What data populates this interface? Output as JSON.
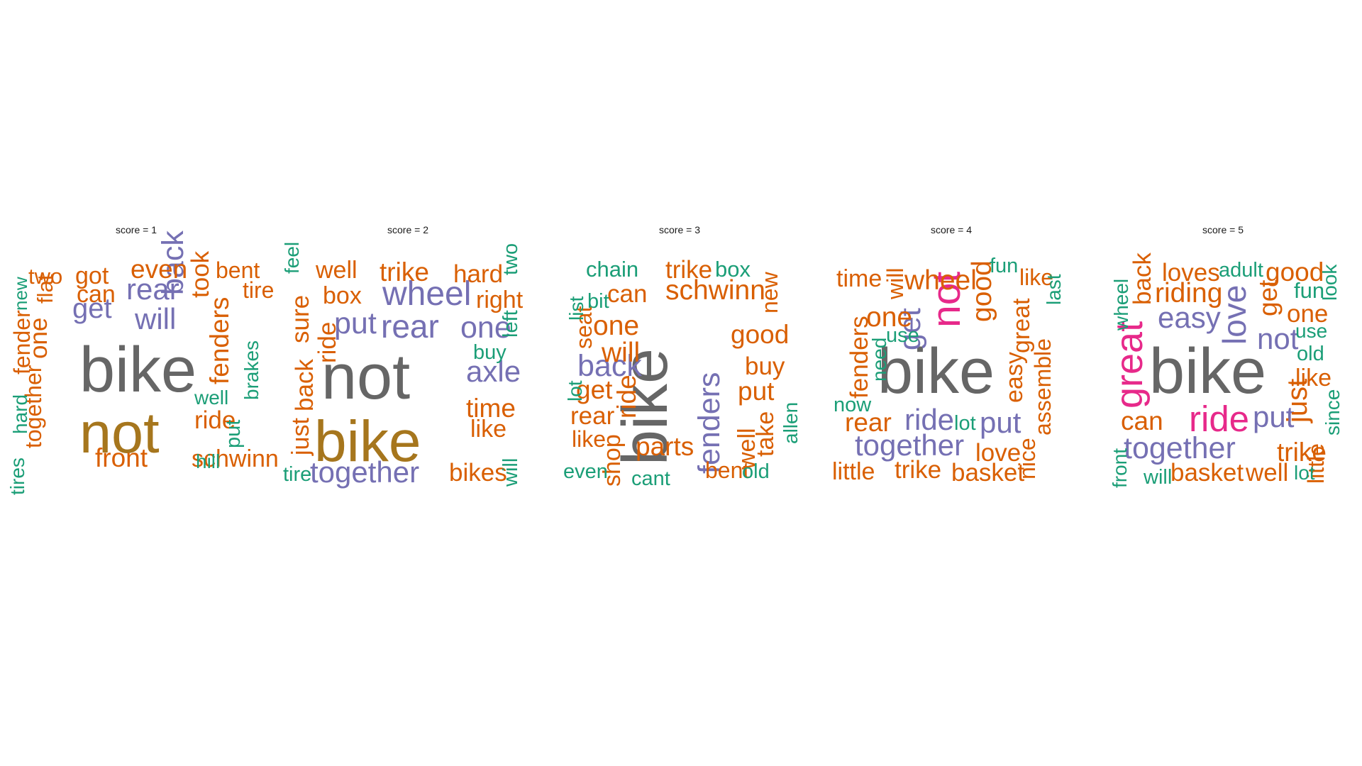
{
  "chart_data": [
    {
      "type": "wordcloud",
      "title": "score = 1",
      "words": [
        {
          "text": "bike",
          "weight": 100,
          "color": "#666666"
        },
        {
          "text": "not",
          "weight": 88,
          "color": "#A6761D"
        },
        {
          "text": "rear",
          "weight": 38,
          "color": "#7570B3"
        },
        {
          "text": "get",
          "weight": 36,
          "color": "#7570B3"
        },
        {
          "text": "will",
          "weight": 38,
          "color": "#7570B3"
        },
        {
          "text": "back",
          "weight": 40,
          "color": "#7570B3"
        },
        {
          "text": "even",
          "weight": 32,
          "color": "#D95F02"
        },
        {
          "text": "front",
          "weight": 32,
          "color": "#D95F02"
        },
        {
          "text": "fenders",
          "weight": 32,
          "color": "#D95F02"
        },
        {
          "text": "took",
          "weight": 30,
          "color": "#D95F02"
        },
        {
          "text": "one",
          "weight": 30,
          "color": "#D95F02"
        },
        {
          "text": "got",
          "weight": 28,
          "color": "#D95F02"
        },
        {
          "text": "can",
          "weight": 28,
          "color": "#D95F02"
        },
        {
          "text": "ride",
          "weight": 30,
          "color": "#D95F02"
        },
        {
          "text": "bent",
          "weight": 26,
          "color": "#D95F02"
        },
        {
          "text": "tire",
          "weight": 26,
          "color": "#D95F02"
        },
        {
          "text": "schwinn",
          "weight": 28,
          "color": "#D95F02"
        },
        {
          "text": "fender",
          "weight": 26,
          "color": "#D95F02"
        },
        {
          "text": "together",
          "weight": 26,
          "color": "#D95F02"
        },
        {
          "text": "two",
          "weight": 24,
          "color": "#D95F02"
        },
        {
          "text": "flat",
          "weight": 24,
          "color": "#D95F02"
        },
        {
          "text": "put",
          "weight": 22,
          "color": "#1B9E77"
        },
        {
          "text": "well",
          "weight": 20,
          "color": "#1B9E77"
        },
        {
          "text": "hill",
          "weight": 20,
          "color": "#1B9E77"
        },
        {
          "text": "brakes",
          "weight": 20,
          "color": "#1B9E77"
        },
        {
          "text": "hard",
          "weight": 20,
          "color": "#1B9E77"
        },
        {
          "text": "tires",
          "weight": 20,
          "color": "#1B9E77"
        },
        {
          "text": "new",
          "weight": 18,
          "color": "#1B9E77"
        }
      ]
    },
    {
      "type": "wordcloud",
      "title": "score = 2",
      "words": [
        {
          "text": "not",
          "weight": 100,
          "color": "#666666"
        },
        {
          "text": "bike",
          "weight": 90,
          "color": "#A6761D"
        },
        {
          "text": "wheel",
          "weight": 46,
          "color": "#7570B3"
        },
        {
          "text": "rear",
          "weight": 44,
          "color": "#7570B3"
        },
        {
          "text": "one",
          "weight": 40,
          "color": "#7570B3"
        },
        {
          "text": "put",
          "weight": 40,
          "color": "#7570B3"
        },
        {
          "text": "axle",
          "weight": 38,
          "color": "#7570B3"
        },
        {
          "text": "together",
          "weight": 38,
          "color": "#7570B3"
        },
        {
          "text": "trike",
          "weight": 32,
          "color": "#D95F02"
        },
        {
          "text": "hard",
          "weight": 30,
          "color": "#D95F02"
        },
        {
          "text": "right",
          "weight": 28,
          "color": "#D95F02"
        },
        {
          "text": "well",
          "weight": 28,
          "color": "#D95F02"
        },
        {
          "text": "box",
          "weight": 28,
          "color": "#D95F02"
        },
        {
          "text": "sure",
          "weight": 30,
          "color": "#D95F02"
        },
        {
          "text": "back",
          "weight": 30,
          "color": "#D95F02"
        },
        {
          "text": "ride",
          "weight": 30,
          "color": "#D95F02"
        },
        {
          "text": "just",
          "weight": 28,
          "color": "#D95F02"
        },
        {
          "text": "time",
          "weight": 32,
          "color": "#D95F02"
        },
        {
          "text": "like",
          "weight": 28,
          "color": "#D95F02"
        },
        {
          "text": "bikes",
          "weight": 30,
          "color": "#D95F02"
        },
        {
          "text": "buy",
          "weight": 22,
          "color": "#1B9E77"
        },
        {
          "text": "left",
          "weight": 22,
          "color": "#1B9E77"
        },
        {
          "text": "two",
          "weight": 22,
          "color": "#1B9E77"
        },
        {
          "text": "feel",
          "weight": 20,
          "color": "#1B9E77"
        },
        {
          "text": "tire",
          "weight": 22,
          "color": "#1B9E77"
        },
        {
          "text": "will",
          "weight": 22,
          "color": "#1B9E77"
        }
      ]
    },
    {
      "type": "wordcloud",
      "title": "score = 3",
      "words": [
        {
          "text": "bike",
          "weight": 100,
          "color": "#666666"
        },
        {
          "text": "back",
          "weight": 40,
          "color": "#7570B3"
        },
        {
          "text": "fenders",
          "weight": 40,
          "color": "#7570B3"
        },
        {
          "text": "schwinn",
          "weight": 34,
          "color": "#D95F02"
        },
        {
          "text": "one",
          "weight": 34,
          "color": "#D95F02"
        },
        {
          "text": "will",
          "weight": 34,
          "color": "#D95F02"
        },
        {
          "text": "good",
          "weight": 32,
          "color": "#D95F02"
        },
        {
          "text": "get",
          "weight": 32,
          "color": "#D95F02"
        },
        {
          "text": "put",
          "weight": 32,
          "color": "#D95F02"
        },
        {
          "text": "ride",
          "weight": 32,
          "color": "#D95F02"
        },
        {
          "text": "parts",
          "weight": 32,
          "color": "#D95F02"
        },
        {
          "text": "trike",
          "weight": 30,
          "color": "#D95F02"
        },
        {
          "text": "can",
          "weight": 30,
          "color": "#D95F02"
        },
        {
          "text": "buy",
          "weight": 30,
          "color": "#D95F02"
        },
        {
          "text": "rear",
          "weight": 30,
          "color": "#D95F02"
        },
        {
          "text": "shop",
          "weight": 28,
          "color": "#D95F02"
        },
        {
          "text": "take",
          "weight": 28,
          "color": "#D95F02"
        },
        {
          "text": "well",
          "weight": 28,
          "color": "#D95F02"
        },
        {
          "text": "seat",
          "weight": 26,
          "color": "#D95F02"
        },
        {
          "text": "like",
          "weight": 26,
          "color": "#D95F02"
        },
        {
          "text": "bent",
          "weight": 26,
          "color": "#D95F02"
        },
        {
          "text": "new",
          "weight": 26,
          "color": "#D95F02"
        },
        {
          "text": "chain",
          "weight": 24,
          "color": "#1B9E77"
        },
        {
          "text": "box",
          "weight": 24,
          "color": "#1B9E77"
        },
        {
          "text": "bit",
          "weight": 22,
          "color": "#1B9E77"
        },
        {
          "text": "list",
          "weight": 20,
          "color": "#1B9E77"
        },
        {
          "text": "lot",
          "weight": 20,
          "color": "#1B9E77"
        },
        {
          "text": "even",
          "weight": 22,
          "color": "#1B9E77"
        },
        {
          "text": "cant",
          "weight": 22,
          "color": "#1B9E77"
        },
        {
          "text": "old",
          "weight": 22,
          "color": "#1B9E77"
        },
        {
          "text": "allen",
          "weight": 20,
          "color": "#1B9E77"
        }
      ]
    },
    {
      "type": "wordcloud",
      "title": "score = 4",
      "words": [
        {
          "text": "bike",
          "weight": 100,
          "color": "#666666"
        },
        {
          "text": "not",
          "weight": 58,
          "color": "#E7298A"
        },
        {
          "text": "get",
          "weight": 40,
          "color": "#7570B3"
        },
        {
          "text": "ride",
          "weight": 38,
          "color": "#7570B3"
        },
        {
          "text": "put",
          "weight": 38,
          "color": "#7570B3"
        },
        {
          "text": "together",
          "weight": 38,
          "color": "#7570B3"
        },
        {
          "text": "wheel",
          "weight": 34,
          "color": "#D95F02"
        },
        {
          "text": "good",
          "weight": 34,
          "color": "#D95F02"
        },
        {
          "text": "one",
          "weight": 34,
          "color": "#D95F02"
        },
        {
          "text": "rear",
          "weight": 32,
          "color": "#D95F02"
        },
        {
          "text": "fenders",
          "weight": 30,
          "color": "#D95F02"
        },
        {
          "text": "love",
          "weight": 30,
          "color": "#D95F02"
        },
        {
          "text": "basket",
          "weight": 30,
          "color": "#D95F02"
        },
        {
          "text": "trike",
          "weight": 30,
          "color": "#D95F02"
        },
        {
          "text": "time",
          "weight": 28,
          "color": "#D95F02"
        },
        {
          "text": "little",
          "weight": 28,
          "color": "#D95F02"
        },
        {
          "text": "great",
          "weight": 28,
          "color": "#D95F02"
        },
        {
          "text": "easy",
          "weight": 28,
          "color": "#D95F02"
        },
        {
          "text": "like",
          "weight": 26,
          "color": "#D95F02"
        },
        {
          "text": "assemble",
          "weight": 26,
          "color": "#D95F02"
        },
        {
          "text": "nice",
          "weight": 26,
          "color": "#D95F02"
        },
        {
          "text": "will",
          "weight": 26,
          "color": "#D95F02"
        },
        {
          "text": "use",
          "weight": 22,
          "color": "#1B9E77"
        },
        {
          "text": "need",
          "weight": 20,
          "color": "#1B9E77"
        },
        {
          "text": "now",
          "weight": 22,
          "color": "#1B9E77"
        },
        {
          "text": "lot",
          "weight": 22,
          "color": "#1B9E77"
        },
        {
          "text": "fun",
          "weight": 22,
          "color": "#1B9E77"
        },
        {
          "text": "last",
          "weight": 20,
          "color": "#1B9E77"
        }
      ]
    },
    {
      "type": "wordcloud",
      "title": "score = 5",
      "words": [
        {
          "text": "bike",
          "weight": 100,
          "color": "#666666"
        },
        {
          "text": "great",
          "weight": 54,
          "color": "#E7298A"
        },
        {
          "text": "ride",
          "weight": 50,
          "color": "#E7298A"
        },
        {
          "text": "love",
          "weight": 44,
          "color": "#7570B3"
        },
        {
          "text": "easy",
          "weight": 38,
          "color": "#7570B3"
        },
        {
          "text": "not",
          "weight": 38,
          "color": "#7570B3"
        },
        {
          "text": "put",
          "weight": 38,
          "color": "#7570B3"
        },
        {
          "text": "together",
          "weight": 40,
          "color": "#7570B3"
        },
        {
          "text": "just",
          "weight": 36,
          "color": "#D95F02"
        },
        {
          "text": "riding",
          "weight": 34,
          "color": "#D95F02"
        },
        {
          "text": "good",
          "weight": 32,
          "color": "#D95F02"
        },
        {
          "text": "get",
          "weight": 32,
          "color": "#D95F02"
        },
        {
          "text": "one",
          "weight": 30,
          "color": "#D95F02"
        },
        {
          "text": "loves",
          "weight": 30,
          "color": "#D95F02"
        },
        {
          "text": "back",
          "weight": 30,
          "color": "#D95F02"
        },
        {
          "text": "can",
          "weight": 32,
          "color": "#D95F02"
        },
        {
          "text": "trike",
          "weight": 32,
          "color": "#D95F02"
        },
        {
          "text": "basket",
          "weight": 30,
          "color": "#D95F02"
        },
        {
          "text": "well",
          "weight": 30,
          "color": "#D95F02"
        },
        {
          "text": "like",
          "weight": 28,
          "color": "#D95F02"
        },
        {
          "text": "little",
          "weight": 26,
          "color": "#D95F02"
        },
        {
          "text": "adult",
          "weight": 22,
          "color": "#1B9E77"
        },
        {
          "text": "fun",
          "weight": 24,
          "color": "#1B9E77"
        },
        {
          "text": "wheel",
          "weight": 20,
          "color": "#1B9E77"
        },
        {
          "text": "use",
          "weight": 20,
          "color": "#1B9E77"
        },
        {
          "text": "old",
          "weight": 22,
          "color": "#1B9E77"
        },
        {
          "text": "look",
          "weight": 20,
          "color": "#1B9E77"
        },
        {
          "text": "since",
          "weight": 20,
          "color": "#1B9E77"
        },
        {
          "text": "front",
          "weight": 20,
          "color": "#1B9E77"
        },
        {
          "text": "will",
          "weight": 22,
          "color": "#1B9E77"
        },
        {
          "text": "lot",
          "weight": 20,
          "color": "#1B9E77"
        }
      ]
    }
  ]
}
